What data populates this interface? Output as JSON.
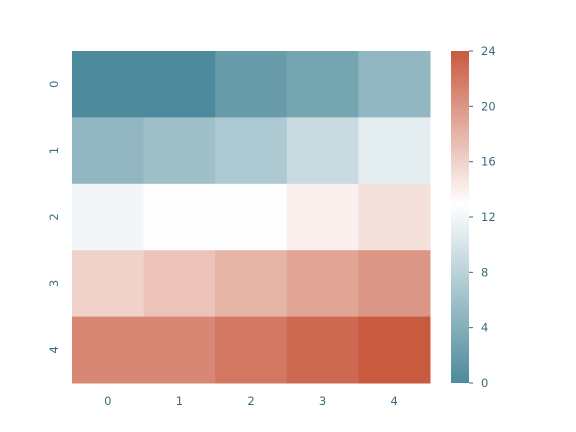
{
  "chart_data": {
    "type": "heatmap",
    "x_categories": [
      "0",
      "1",
      "2",
      "3",
      "4"
    ],
    "y_categories": [
      "0",
      "1",
      "2",
      "3",
      "4"
    ],
    "values": [
      [
        0,
        0,
        2,
        3,
        5
      ],
      [
        5,
        6,
        7,
        9,
        11
      ],
      [
        12,
        13,
        13,
        14,
        15
      ],
      [
        16,
        17,
        18,
        19,
        20
      ],
      [
        21,
        21,
        22,
        23,
        24
      ]
    ],
    "colorbar": {
      "min": 0,
      "max": 24,
      "ticks": [
        0,
        4,
        8,
        12,
        16,
        20,
        24
      ],
      "tick_labels": [
        "0",
        "4",
        "8",
        "12",
        "16",
        "20",
        "24"
      ]
    },
    "colormap": {
      "low": "#4d8a9b",
      "mid": "#ffffff",
      "high": "#c85a3f"
    },
    "tick_color": "#3b6b7e",
    "grid": false,
    "title": "",
    "xlabel": "",
    "ylabel": ""
  }
}
